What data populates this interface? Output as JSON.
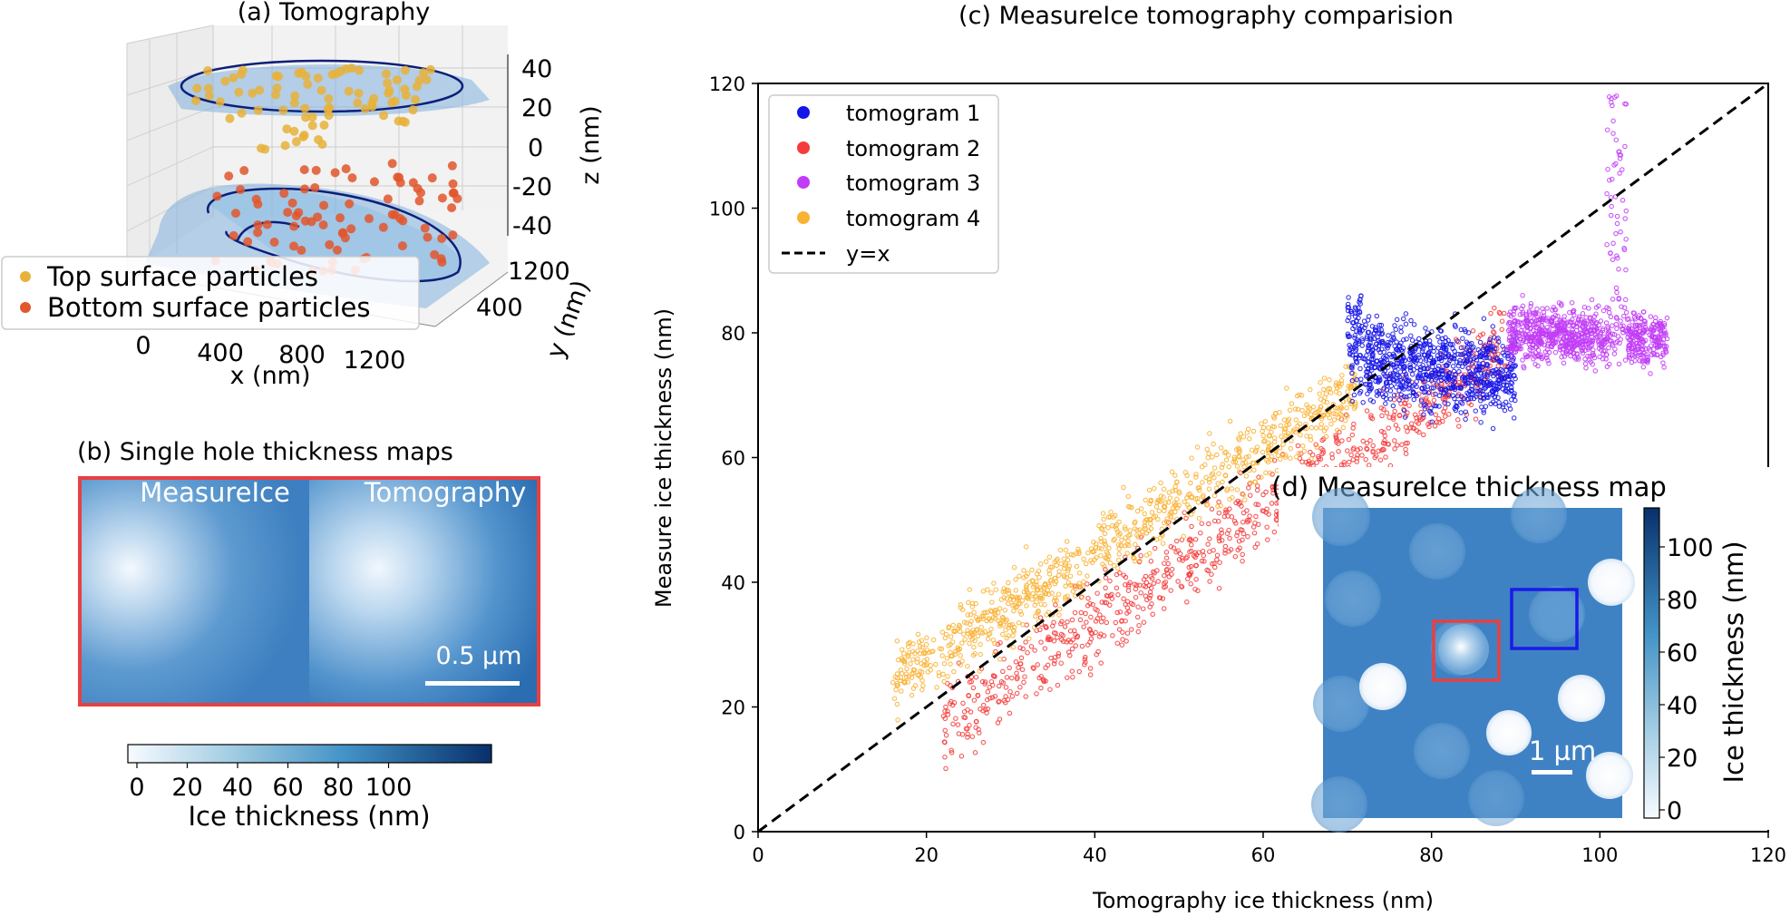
{
  "panel_a": {
    "title": "(a) Tomography",
    "z_ticks": [
      "40",
      "20",
      "0",
      "-20",
      "-40"
    ],
    "z_label": "z (nm)",
    "x_ticks": [
      "0",
      "400",
      "800",
      "1200"
    ],
    "x_label": "x (nm)",
    "y_ticks": [
      "1200",
      "400"
    ],
    "y_label": "y (nm)",
    "legend": [
      {
        "label": "Top surface particles",
        "color": "#e8b23a"
      },
      {
        "label": "Bottom surface particles",
        "color": "#e2562b"
      }
    ]
  },
  "panel_b": {
    "title": "(b) Single hole thickness maps",
    "left_label": "MeasureIce",
    "right_label": "Tomography",
    "scale_label": "0.5 µm",
    "colorbar_ticks": [
      "0",
      "20",
      "40",
      "60",
      "80",
      "100"
    ],
    "colorbar_label": "Ice thickness (nm)",
    "frame_color": "#e84040"
  },
  "chart_data": {
    "type": "scatter",
    "title": "(c) MeasureIce tomography comparision",
    "xlabel": "Tomography ice thickness (nm)",
    "ylabel": "Measure ice thickness (nm)",
    "xlim": [
      0,
      120
    ],
    "ylim": [
      0,
      120
    ],
    "xticks": [
      0,
      20,
      40,
      60,
      80,
      100,
      120
    ],
    "yticks": [
      0,
      20,
      40,
      60,
      80,
      100,
      120
    ],
    "legend_position": "top-left",
    "series": [
      {
        "name": "tomogram 1",
        "color": "#1515e8",
        "x_range": [
          70,
          90
        ],
        "y_center": [
          76,
          73
        ],
        "y_spread": 6,
        "peak": {
          "x": 71,
          "y": 86
        }
      },
      {
        "name": "tomogram 2",
        "color": "#f53b3b",
        "x_range": [
          22,
          89
        ],
        "y_center": [
          17,
          78
        ],
        "y_spread": 6
      },
      {
        "name": "tomogram 3",
        "color": "#c13cf6",
        "x_range": [
          89,
          108
        ],
        "y_center": [
          80,
          79
        ],
        "y_spread": 4,
        "peak": {
          "x": 102,
          "y": 119
        }
      },
      {
        "name": "tomogram 4",
        "color": "#f9b233",
        "x_range": [
          16,
          71
        ],
        "y_center": [
          24,
          71
        ],
        "y_spread": 5
      }
    ],
    "reference_line": {
      "name": "y=x",
      "style": "dashed",
      "color": "#000000"
    }
  },
  "panel_d": {
    "title": "(d) MeasureIce thickness map",
    "scale_label": "1 µm",
    "colorbar_ticks": [
      "100",
      "80",
      "60",
      "40",
      "20",
      "0"
    ],
    "colorbar_label": "Ice thickness (nm)",
    "box_colors": [
      "#e84040",
      "#1a1ae8"
    ]
  }
}
